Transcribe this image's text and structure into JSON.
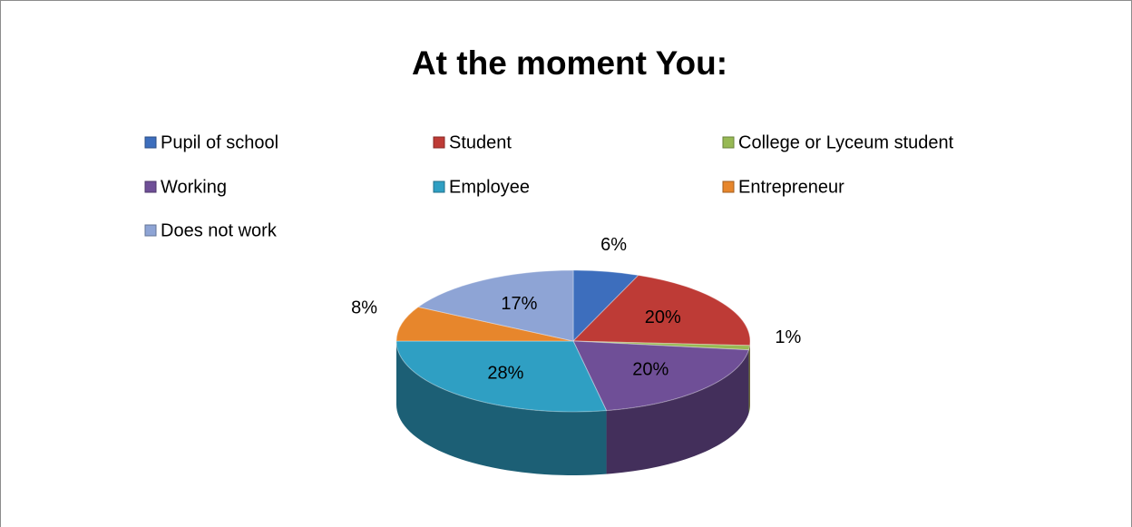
{
  "chart_data": {
    "type": "pie",
    "title": "At the moment You:",
    "categories": [
      "Pupil of school",
      "Student",
      "College or Lyceum student",
      "Working",
      "Employee",
      "Entrepreneur",
      "Does not work"
    ],
    "values": [
      6,
      20,
      1,
      20,
      28,
      8,
      17
    ],
    "value_labels": [
      "6%",
      "20%",
      "1%",
      "20%",
      "28%",
      "8%",
      "17%"
    ],
    "colors": [
      "#3d6ebd",
      "#be3b36",
      "#97b954",
      "#6f4f97",
      "#2f9fc3",
      "#e7862c",
      "#8ea4d5"
    ],
    "legend": "top"
  }
}
